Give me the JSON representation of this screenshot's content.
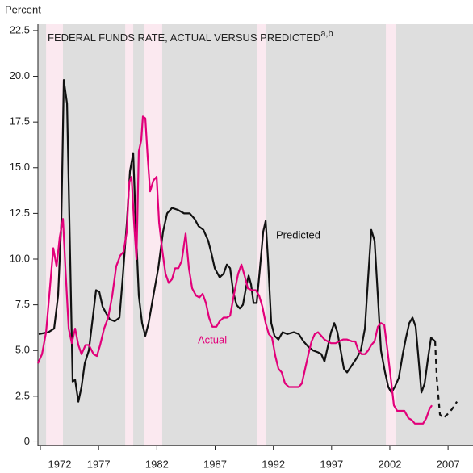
{
  "chart_data": {
    "type": "line",
    "title": "FEDERAL FUNDS RATE, ACTUAL VERSUS PREDICTED",
    "title_sup": "a,b",
    "ylabel": "Percent",
    "xlim": [
      1971.79,
      2009.14
    ],
    "xticks": [
      1972,
      1977,
      1982,
      1987,
      1992,
      1997,
      2002,
      2007
    ],
    "ylim": [
      -0.2,
      22.85
    ],
    "yticks": [
      0,
      2.5,
      {
        "value": 5,
        "label": "5.0"
      },
      7.5,
      {
        "value": 10,
        "label": "10.0"
      },
      12.5,
      {
        "value": 15,
        "label": "15.0"
      },
      17.5,
      {
        "value": 20,
        "label": "20.0"
      },
      22.5
    ],
    "recessions": [
      [
        1972.49,
        1973.94
      ],
      [
        1979.28,
        1979.97
      ],
      [
        1980.87,
        1982.46
      ],
      [
        1990.57,
        1991.4
      ],
      [
        2001.66,
        2002.49
      ]
    ],
    "recession_color": "#fbe9f0",
    "background": "#dedede",
    "series": [
      {
        "name": "Predicted",
        "color": "#111111",
        "x": [
          1971.86,
          1972.69,
          1973.18,
          1973.52,
          1973.8,
          1974.01,
          1974.29,
          1974.56,
          1974.77,
          1974.98,
          1975.26,
          1975.53,
          1975.81,
          1976.16,
          1976.5,
          1976.78,
          1977.06,
          1977.34,
          1977.68,
          1977.96,
          1978.38,
          1978.79,
          1979.07,
          1979.42,
          1979.69,
          1979.97,
          1980.18,
          1980.45,
          1980.73,
          1981.01,
          1981.29,
          1981.7,
          1982.12,
          1982.53,
          1982.88,
          1983.3,
          1983.78,
          1984.34,
          1984.82,
          1985.24,
          1985.58,
          1986.0,
          1986.41,
          1986.69,
          1986.97,
          1987.39,
          1987.73,
          1988.01,
          1988.29,
          1988.56,
          1988.84,
          1989.12,
          1989.39,
          1989.67,
          1989.88,
          1990.09,
          1990.3,
          1990.57,
          1990.85,
          1991.13,
          1991.34,
          1991.54,
          1991.82,
          1992.1,
          1992.44,
          1992.79,
          1993.21,
          1993.76,
          1994.18,
          1994.59,
          1995.01,
          1995.42,
          1995.84,
          1996.12,
          1996.39,
          1996.67,
          1996.95,
          1997.23,
          1997.5,
          1997.78,
          1998.06,
          1998.33,
          1998.75,
          1999.17,
          1999.51,
          1999.86,
          2000.14,
          2000.41,
          2000.69,
          2000.97,
          2001.24,
          2001.59,
          2001.87,
          2002.14,
          2002.42,
          2002.77,
          2003.11,
          2003.39,
          2003.67,
          2003.95,
          2004.22,
          2004.43,
          2004.71,
          2004.99,
          2005.26,
          2005.54,
          2005.89
        ],
        "values": [
          5.9,
          6.0,
          6.2,
          8,
          12,
          19.8,
          18.5,
          10,
          3.3,
          3.4,
          2.2,
          3,
          4.3,
          5.0,
          6.8,
          8.3,
          8.2,
          7.4,
          7.0,
          6.7,
          6.6,
          6.8,
          9,
          12,
          14.8,
          15.8,
          12,
          8,
          6.5,
          5.8,
          6.5,
          8,
          9.5,
          11.5,
          12.5,
          12.8,
          12.7,
          12.5,
          12.5,
          12.2,
          11.8,
          11.6,
          11.0,
          10.3,
          9.5,
          9.0,
          9.2,
          9.7,
          9.5,
          8.2,
          7.5,
          7.3,
          7.5,
          8.5,
          9.1,
          8.6,
          7.6,
          7.6,
          9.5,
          11.5,
          12.1,
          10,
          6.5,
          5.8,
          5.6,
          6.0,
          5.9,
          6.0,
          5.9,
          5.5,
          5.2,
          5.0,
          4.9,
          4.8,
          4.4,
          5.2,
          6.0,
          6.5,
          6.0,
          5.0,
          4.0,
          3.8,
          4.2,
          4.6,
          5.0,
          6.2,
          9,
          11.6,
          11,
          8,
          5,
          3.8,
          3.0,
          2.7,
          3.0,
          3.5,
          4.8,
          5.7,
          6.5,
          6.8,
          6.3,
          4.8,
          2.7,
          3.2,
          4.5,
          5.7,
          5.5
        ]
      },
      {
        "name": "Actual",
        "color": "#e2007a",
        "x": [
          1971.79,
          1972.14,
          1972.49,
          1972.83,
          1973.11,
          1973.39,
          1973.66,
          1973.94,
          1974.15,
          1974.43,
          1974.7,
          1974.98,
          1975.26,
          1975.53,
          1975.88,
          1976.16,
          1976.57,
          1976.85,
          1977.13,
          1977.47,
          1977.82,
          1978.17,
          1978.51,
          1978.86,
          1979.14,
          1979.42,
          1979.62,
          1979.83,
          1980.04,
          1980.25,
          1980.45,
          1980.66,
          1980.8,
          1981.01,
          1981.22,
          1981.42,
          1981.7,
          1981.98,
          1982.19,
          1982.46,
          1982.74,
          1983.02,
          1983.3,
          1983.57,
          1983.85,
          1984.13,
          1984.47,
          1984.75,
          1985.03,
          1985.37,
          1985.65,
          1985.93,
          1986.21,
          1986.48,
          1986.76,
          1987.11,
          1987.39,
          1987.73,
          1988.01,
          1988.29,
          1988.63,
          1988.98,
          1989.26,
          1989.53,
          1989.81,
          1990.16,
          1990.5,
          1990.78,
          1991.06,
          1991.34,
          1991.61,
          1991.89,
          1992.17,
          1992.44,
          1992.72,
          1993.0,
          1993.34,
          1993.76,
          1994.18,
          1994.45,
          1994.73,
          1995.01,
          1995.28,
          1995.56,
          1995.84,
          1996.12,
          1996.39,
          1996.67,
          1996.95,
          1997.36,
          1997.64,
          1997.99,
          1998.33,
          1998.75,
          1999.03,
          1999.3,
          1999.58,
          1999.86,
          2000.14,
          2000.41,
          2000.69,
          2000.97,
          2001.24,
          2001.52,
          2001.8,
          2002.08,
          2002.35,
          2002.63,
          2002.98,
          2003.25,
          2003.6,
          2003.88,
          2004.15,
          2004.5,
          2004.85,
          2005.13,
          2005.4,
          2005.61
        ],
        "values": [
          4.3,
          4.8,
          6.0,
          8.5,
          10.6,
          9.6,
          11.2,
          12.2,
          9.5,
          6.2,
          5.4,
          6.2,
          5.3,
          4.8,
          5.3,
          5.3,
          4.8,
          4.7,
          5.3,
          6.2,
          6.8,
          8.0,
          9.6,
          10.2,
          10.4,
          11.5,
          14.2,
          14.5,
          12.0,
          10,
          15.9,
          16.5,
          17.8,
          17.7,
          15.5,
          13.7,
          14.3,
          14.5,
          12,
          10.5,
          9.2,
          8.7,
          8.9,
          9.5,
          9.5,
          9.9,
          11.4,
          9.5,
          8.4,
          8.0,
          7.9,
          8.1,
          7.6,
          6.8,
          6.3,
          6.3,
          6.6,
          6.8,
          6.8,
          6.9,
          8.1,
          9.2,
          9.7,
          9.1,
          8.4,
          8.3,
          8.3,
          8.0,
          7.4,
          6.5,
          5.9,
          5.7,
          4.7,
          4.0,
          3.8,
          3.2,
          3.0,
          3.0,
          3.0,
          3.2,
          4.0,
          4.8,
          5.5,
          5.9,
          6.0,
          5.8,
          5.6,
          5.5,
          5.4,
          5.4,
          5.5,
          5.6,
          5.6,
          5.5,
          5.5,
          5.0,
          4.8,
          4.8,
          5.0,
          5.3,
          5.5,
          6.3,
          6.5,
          6.4,
          5.0,
          3.5,
          2.0,
          1.7,
          1.7,
          1.7,
          1.3,
          1.2,
          1.0,
          1.0,
          1.0,
          1.3,
          1.8,
          2.0
        ]
      },
      {
        "color": "#111111",
        "dash": true,
        "x": [
          2005.89,
          2006.03,
          2006.3,
          2006.58,
          2006.93,
          2007.35,
          2007.76
        ],
        "values": [
          5.5,
          3.5,
          1.5,
          1.3,
          1.5,
          1.8,
          2.2
        ]
      }
    ]
  }
}
